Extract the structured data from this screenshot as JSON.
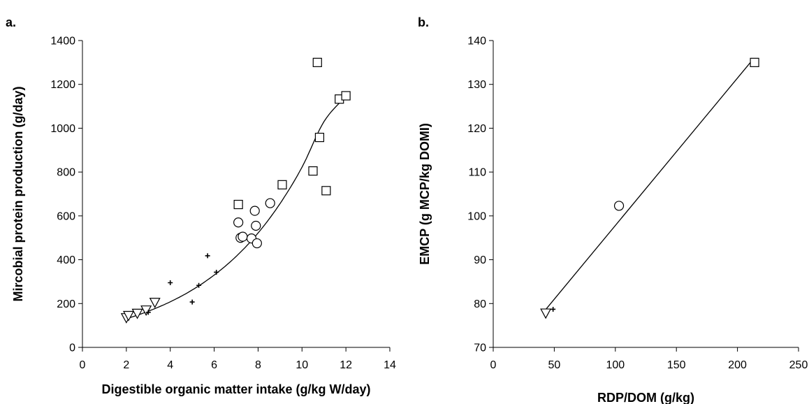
{
  "chart_data": [
    {
      "type": "scatter",
      "panel_label": "a.",
      "xlabel": "Digestible organic matter intake (g/kg W/day)",
      "ylabel": "Mircobial protein production (g/day)",
      "xlim": [
        0,
        14
      ],
      "ylim": [
        0,
        1400
      ],
      "xticks": [
        0,
        2,
        4,
        6,
        8,
        10,
        12,
        14
      ],
      "yticks": [
        0,
        200,
        400,
        600,
        800,
        1000,
        1200,
        1400
      ],
      "grid": false,
      "legend": "none",
      "series": [
        {
          "marker": "triangle-down",
          "points": [
            [
              2.0,
              135
            ],
            [
              2.1,
              145
            ],
            [
              2.5,
              155
            ],
            [
              2.9,
              170
            ],
            [
              3.3,
              205
            ]
          ]
        },
        {
          "marker": "plus",
          "points": [
            [
              3.0,
              160
            ],
            [
              4.0,
              295
            ],
            [
              5.0,
              207
            ],
            [
              5.3,
              283
            ],
            [
              5.7,
              418
            ],
            [
              6.1,
              343
            ]
          ]
        },
        {
          "marker": "circle",
          "points": [
            [
              7.1,
              570
            ],
            [
              7.2,
              500
            ],
            [
              7.3,
              505
            ],
            [
              7.7,
              497
            ],
            [
              7.85,
              623
            ],
            [
              7.9,
              555
            ],
            [
              7.95,
              475
            ],
            [
              8.55,
              658
            ]
          ]
        },
        {
          "marker": "square",
          "points": [
            [
              7.1,
              652
            ],
            [
              9.1,
              742
            ],
            [
              10.5,
              805
            ],
            [
              10.7,
              1300
            ],
            [
              10.8,
              958
            ],
            [
              11.1,
              715
            ],
            [
              11.7,
              1133
            ],
            [
              12.0,
              1148
            ]
          ]
        }
      ],
      "fit_curve": {
        "type": "exponential",
        "points": [
          [
            2,
            130
          ],
          [
            3,
            165
          ],
          [
            4,
            208
          ],
          [
            5,
            262
          ],
          [
            6,
            330
          ],
          [
            7,
            415
          ],
          [
            8,
            522
          ],
          [
            9,
            656
          ],
          [
            10,
            822
          ],
          [
            11,
            1030
          ],
          [
            12,
            1145
          ]
        ]
      }
    },
    {
      "type": "scatter",
      "panel_label": "b.",
      "xlabel": "RDP/DOM (g/kg)",
      "ylabel": "EMCP (g MCP/kg DOMI)",
      "xlim": [
        0,
        250
      ],
      "ylim": [
        70,
        140
      ],
      "xticks": [
        0,
        50,
        100,
        150,
        200,
        250
      ],
      "yticks": [
        70,
        80,
        90,
        100,
        110,
        120,
        130,
        140
      ],
      "grid": false,
      "legend": "none",
      "series": [
        {
          "marker": "triangle-down",
          "points": [
            [
              43,
              77.8
            ]
          ]
        },
        {
          "marker": "plus",
          "points": [
            [
              49,
              78.7
            ]
          ]
        },
        {
          "marker": "circle",
          "points": [
            [
              103,
              102.3
            ]
          ]
        },
        {
          "marker": "square",
          "points": [
            [
              214,
              135
            ]
          ]
        }
      ],
      "fit_curve": {
        "type": "linear",
        "points": [
          [
            42,
            78.3
          ],
          [
            213,
            135.8
          ]
        ]
      }
    }
  ]
}
